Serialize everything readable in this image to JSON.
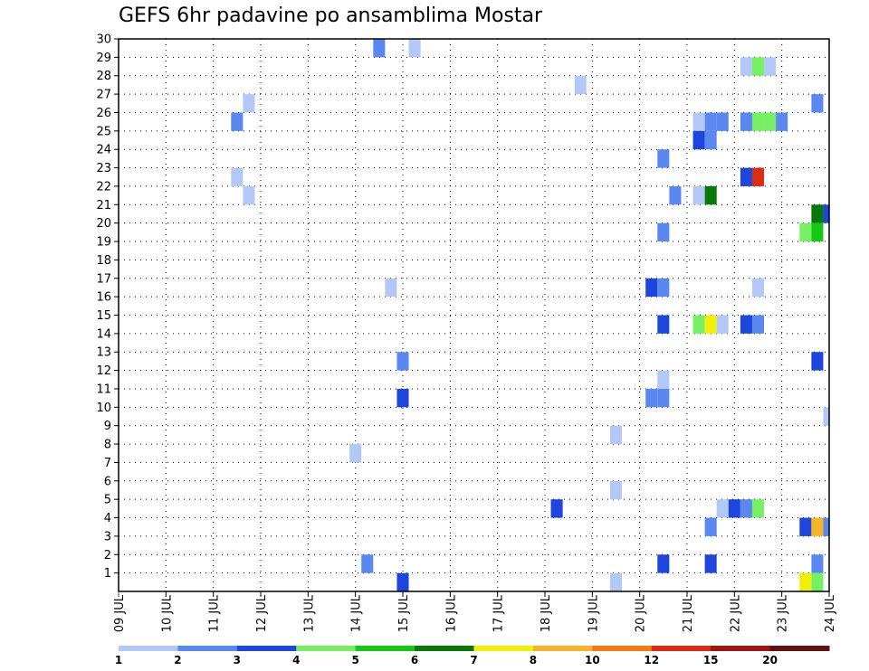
{
  "chart_data": {
    "type": "heatmap",
    "title": "GEFS 6hr padavine po ansamblima Mostar",
    "x_tick_labels": [
      "09 JUL",
      "10 JUL",
      "11 JUL",
      "12 JUL",
      "13 JUL",
      "14 JUL",
      "15 JUL",
      "16 JUL",
      "17 JUL",
      "18 JUL",
      "19 JUL",
      "20 JUL",
      "21 JUL",
      "22 JUL",
      "23 JUL",
      "24 JUL"
    ],
    "y_tick_labels": [
      "1",
      "2",
      "3",
      "4",
      "5",
      "6",
      "7",
      "8",
      "9",
      "10",
      "11",
      "12",
      "13",
      "14",
      "15",
      "16",
      "17",
      "18",
      "19",
      "20",
      "21",
      "22",
      "23",
      "24",
      "25",
      "26",
      "27",
      "28",
      "29",
      "30"
    ],
    "xlim": [
      "09 JUL",
      "24 JUL"
    ],
    "ylim": [
      0,
      30
    ],
    "time_step_hours": 6,
    "grid": "dotted",
    "legend": {
      "placement": "bottom",
      "labels": [
        "1",
        "2",
        "3",
        "4",
        "5",
        "6",
        "7",
        "8",
        "10",
        "12",
        "15",
        "20"
      ],
      "colors": [
        "#b4c8f8",
        "#5a87f0",
        "#1e46dc",
        "#78f064",
        "#14c814",
        "#087808",
        "#f0f00a",
        "#f8b428",
        "#f87814",
        "#dc2d14",
        "#a01414",
        "#641010"
      ]
    },
    "cells": [
      {
        "t": "14 JUL 12Z",
        "m": 30,
        "v": 2.5
      },
      {
        "t": "15 JUL 06Z",
        "m": 30,
        "v": 1.5
      },
      {
        "t": "22 JUL 06Z",
        "m": 29,
        "v": 1.5
      },
      {
        "t": "22 JUL 12Z",
        "m": 29,
        "v": 4.5
      },
      {
        "t": "22 JUL 18Z",
        "m": 29,
        "v": 1.5
      },
      {
        "t": "18 JUL 18Z",
        "m": 28,
        "v": 1.5
      },
      {
        "t": "11 JUL 18Z",
        "m": 27,
        "v": 1.5
      },
      {
        "t": "23 JUL 18Z",
        "m": 27,
        "v": 2.5
      },
      {
        "t": "11 JUL 12Z",
        "m": 26,
        "v": 2.5
      },
      {
        "t": "21 JUL 06Z",
        "m": 26,
        "v": 1.5
      },
      {
        "t": "21 JUL 12Z",
        "m": 26,
        "v": 2.5
      },
      {
        "t": "21 JUL 18Z",
        "m": 26,
        "v": 2.5
      },
      {
        "t": "22 JUL 06Z",
        "m": 26,
        "v": 2.5
      },
      {
        "t": "22 JUL 12Z",
        "m": 26,
        "v": 4.5
      },
      {
        "t": "22 JUL 18Z",
        "m": 26,
        "v": 4.5
      },
      {
        "t": "23 JUL 00Z",
        "m": 26,
        "v": 2.5
      },
      {
        "t": "21 JUL 06Z",
        "m": 25,
        "v": 3.5
      },
      {
        "t": "21 JUL 12Z",
        "m": 25,
        "v": 2.5
      },
      {
        "t": "20 JUL 12Z",
        "m": 24,
        "v": 2.5
      },
      {
        "t": "11 JUL 12Z",
        "m": 23,
        "v": 1.5
      },
      {
        "t": "22 JUL 06Z",
        "m": 23,
        "v": 3.5
      },
      {
        "t": "22 JUL 12Z",
        "m": 23,
        "v": 13.5
      },
      {
        "t": "11 JUL 18Z",
        "m": 22,
        "v": 1.5
      },
      {
        "t": "20 JUL 18Z",
        "m": 22,
        "v": 2.5
      },
      {
        "t": "21 JUL 06Z",
        "m": 22,
        "v": 1.5
      },
      {
        "t": "21 JUL 12Z",
        "m": 22,
        "v": 6.5
      },
      {
        "t": "23 JUL 18Z",
        "m": 21,
        "v": 6.5
      },
      {
        "t": "24 JUL 00Z",
        "m": 21,
        "v": 3.5
      },
      {
        "t": "20 JUL 12Z",
        "m": 20,
        "v": 2.5
      },
      {
        "t": "23 JUL 12Z",
        "m": 20,
        "v": 4.5
      },
      {
        "t": "23 JUL 18Z",
        "m": 20,
        "v": 5.5
      },
      {
        "t": "14 JUL 18Z",
        "m": 17,
        "v": 1.5
      },
      {
        "t": "20 JUL 06Z",
        "m": 17,
        "v": 3.5
      },
      {
        "t": "20 JUL 12Z",
        "m": 17,
        "v": 2.5
      },
      {
        "t": "22 JUL 12Z",
        "m": 17,
        "v": 1.5
      },
      {
        "t": "20 JUL 12Z",
        "m": 15,
        "v": 3.5
      },
      {
        "t": "21 JUL 06Z",
        "m": 15,
        "v": 4.5
      },
      {
        "t": "21 JUL 12Z",
        "m": 15,
        "v": 7.5
      },
      {
        "t": "21 JUL 18Z",
        "m": 15,
        "v": 1.5
      },
      {
        "t": "22 JUL 06Z",
        "m": 15,
        "v": 3.5
      },
      {
        "t": "22 JUL 12Z",
        "m": 15,
        "v": 2.5
      },
      {
        "t": "15 JUL 00Z",
        "m": 13,
        "v": 2.5
      },
      {
        "t": "23 JUL 18Z",
        "m": 13,
        "v": 3.5
      },
      {
        "t": "20 JUL 12Z",
        "m": 12,
        "v": 1.5
      },
      {
        "t": "15 JUL 00Z",
        "m": 11,
        "v": 3.5
      },
      {
        "t": "20 JUL 06Z",
        "m": 11,
        "v": 2.5
      },
      {
        "t": "20 JUL 12Z",
        "m": 11,
        "v": 2.5
      },
      {
        "t": "24 JUL 00Z",
        "m": 10,
        "v": 1.5
      },
      {
        "t": "19 JUL 12Z",
        "m": 9,
        "v": 1.5
      },
      {
        "t": "14 JUL 00Z",
        "m": 8,
        "v": 1.5
      },
      {
        "t": "19 JUL 12Z",
        "m": 6,
        "v": 1.5
      },
      {
        "t": "18 JUL 06Z",
        "m": 5,
        "v": 3.5
      },
      {
        "t": "21 JUL 18Z",
        "m": 5,
        "v": 1.5
      },
      {
        "t": "22 JUL 00Z",
        "m": 5,
        "v": 3.5
      },
      {
        "t": "22 JUL 06Z",
        "m": 5,
        "v": 2.5
      },
      {
        "t": "22 JUL 12Z",
        "m": 5,
        "v": 4.5
      },
      {
        "t": "21 JUL 12Z",
        "m": 4,
        "v": 2.5
      },
      {
        "t": "23 JUL 12Z",
        "m": 4,
        "v": 3.5
      },
      {
        "t": "23 JUL 18Z",
        "m": 4,
        "v": 9
      },
      {
        "t": "24 JUL 00Z",
        "m": 4,
        "v": 2.5
      },
      {
        "t": "14 JUL 06Z",
        "m": 2,
        "v": 2.5
      },
      {
        "t": "20 JUL 12Z",
        "m": 2,
        "v": 3.5
      },
      {
        "t": "21 JUL 12Z",
        "m": 2,
        "v": 3.5
      },
      {
        "t": "23 JUL 18Z",
        "m": 2,
        "v": 2.5
      },
      {
        "t": "15 JUL 00Z",
        "m": 1,
        "v": 3.5
      },
      {
        "t": "19 JUL 12Z",
        "m": 1,
        "v": 1.5
      },
      {
        "t": "23 JUL 12Z",
        "m": 1,
        "v": 7.5
      },
      {
        "t": "23 JUL 18Z",
        "m": 1,
        "v": 4.5
      }
    ]
  }
}
